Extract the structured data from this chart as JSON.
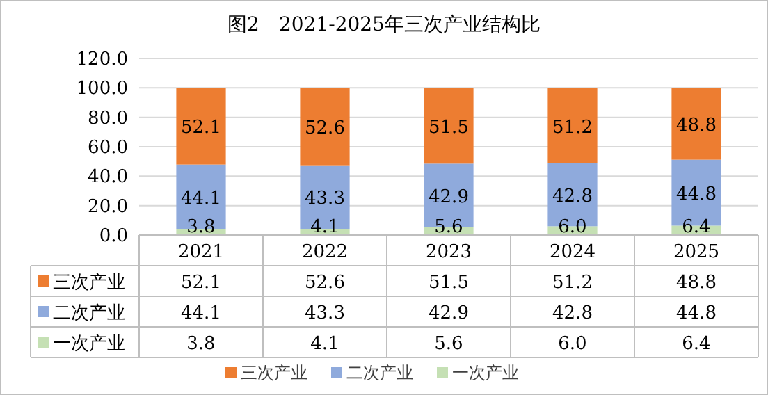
{
  "chart_data": {
    "type": "bar",
    "stacked": true,
    "title": "图2　2021-2025年三次产业结构比",
    "categories": [
      "2021",
      "2022",
      "2023",
      "2024",
      "2025"
    ],
    "series": [
      {
        "name": "一次产业",
        "color": "#c5e0b4",
        "values": [
          3.8,
          4.1,
          5.6,
          6.0,
          6.4
        ],
        "value_labels": [
          "3.8",
          "4.1",
          "5.6",
          "6.0",
          "6.4"
        ]
      },
      {
        "name": "二次产业",
        "color": "#8faadc",
        "values": [
          44.1,
          43.3,
          42.9,
          42.8,
          44.8
        ],
        "value_labels": [
          "44.1",
          "43.3",
          "42.9",
          "42.8",
          "44.8"
        ]
      },
      {
        "name": "三次产业",
        "color": "#ed7d31",
        "values": [
          52.1,
          52.6,
          51.5,
          51.2,
          48.8
        ],
        "value_labels": [
          "52.1",
          "52.6",
          "51.5",
          "51.2",
          "48.8"
        ]
      }
    ],
    "ylim": [
      0,
      120
    ],
    "yticks": [
      {
        "value": 0,
        "label": "0.0"
      },
      {
        "value": 20,
        "label": "20.0"
      },
      {
        "value": 40,
        "label": "40.0"
      },
      {
        "value": 60,
        "label": "60.0"
      },
      {
        "value": 80,
        "label": "80.0"
      },
      {
        "value": 100,
        "label": "100.0"
      },
      {
        "value": 120,
        "label": "120.0"
      }
    ],
    "grid": "y",
    "legend": "bottom"
  }
}
